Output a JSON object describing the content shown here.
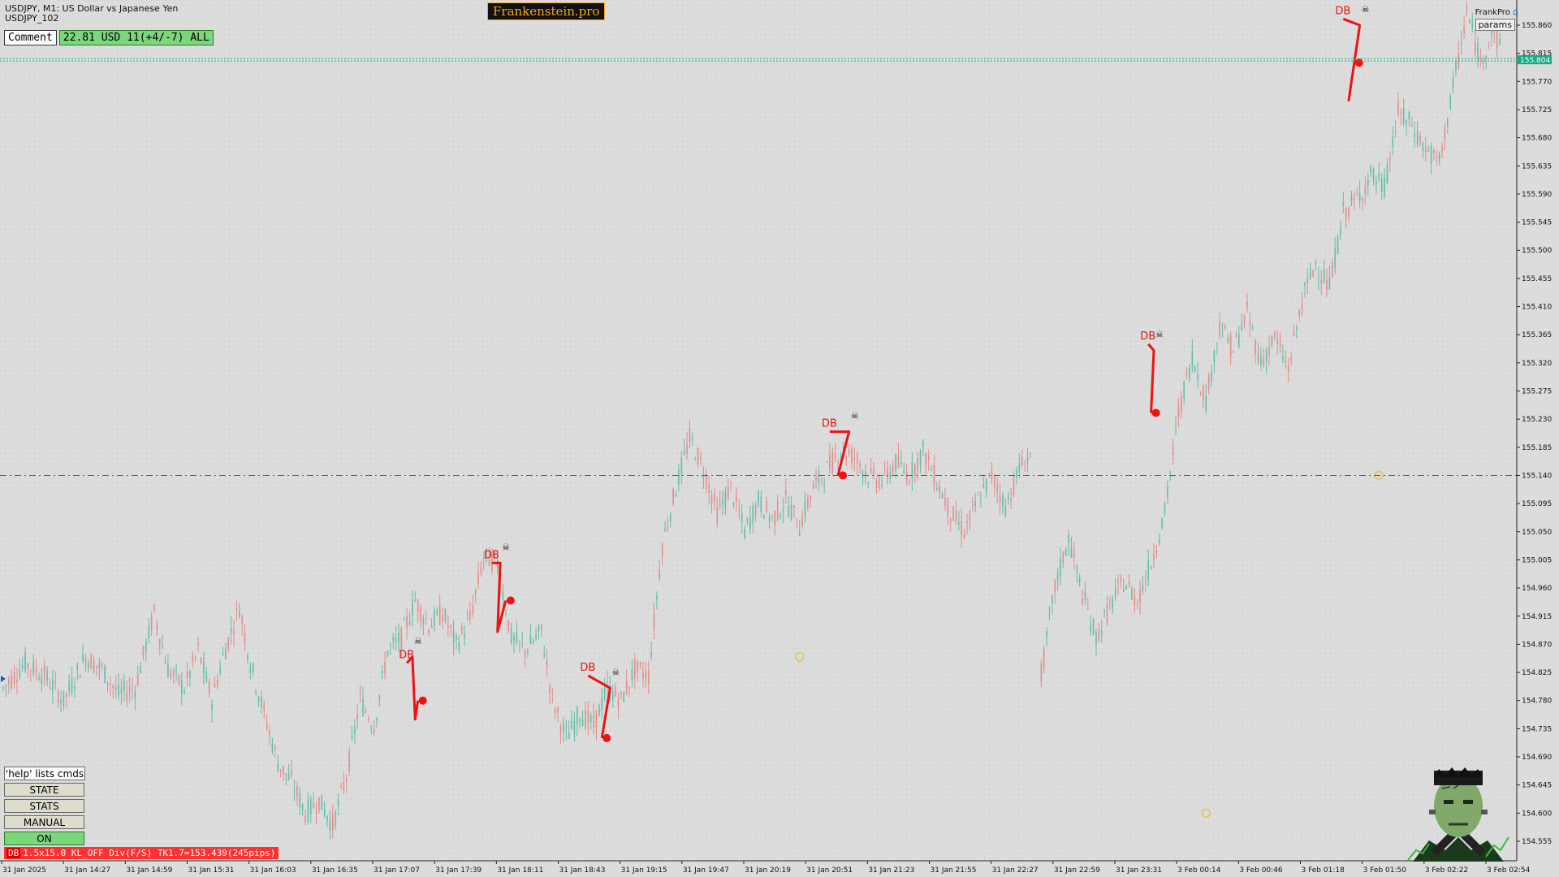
{
  "window": {
    "symbol_title": "USDJPY, M1:  US Dollar vs Japanese Yen",
    "subtitle": "USDJPY_102",
    "brand": "Frankenstein.pro",
    "frankpro_label": "FrankPro",
    "params_label": "params"
  },
  "comment": {
    "label": "Comment",
    "value": "22.81 USD 11(+4/-7) ALL"
  },
  "panel": {
    "help": "'help' lists cmds",
    "state": "STATE",
    "stats": "STATS",
    "manual": "MANUAL",
    "on": "ON"
  },
  "status": {
    "tag": "DB",
    "text": "1.5x15.0 KL_OFF Div(F/S) TK1.7=153.439(245pips)"
  },
  "colors": {
    "background": "#dcdcdc",
    "bull": "#5fbfa6",
    "bear": "#e58a8a",
    "signal": "#ee1111",
    "bid_line": "#1aaa88",
    "level_line": "#dd2222"
  },
  "chart_data": {
    "type": "candlestick",
    "symbol": "USDJPY",
    "timeframe": "M1",
    "y_range": [
      154.525,
      155.895
    ],
    "y_ticks": [
      "155.860",
      "155.815",
      "155.770",
      "155.725",
      "155.680",
      "155.635",
      "155.590",
      "155.545",
      "155.500",
      "155.455",
      "155.410",
      "155.365",
      "155.320",
      "155.275",
      "155.230",
      "155.185",
      "155.140",
      "155.095",
      "155.050",
      "155.005",
      "154.960",
      "154.915",
      "154.870",
      "154.825",
      "154.780",
      "154.735",
      "154.690",
      "154.645",
      "154.600",
      "154.555"
    ],
    "x_ticks": [
      "31 Jan 2025",
      "31 Jan 14:27",
      "31 Jan 14:59",
      "31 Jan 15:31",
      "31 Jan 16:03",
      "31 Jan 16:35",
      "31 Jan 17:07",
      "31 Jan 17:39",
      "31 Jan 18:11",
      "31 Jan 18:43",
      "31 Jan 19:15",
      "31 Jan 19:47",
      "31 Jan 20:19",
      "31 Jan 20:51",
      "31 Jan 21:23",
      "31 Jan 21:55",
      "31 Jan 22:27",
      "31 Jan 22:59",
      "31 Jan 23:31",
      "3 Feb 00:14",
      "3 Feb 00:46",
      "3 Feb 01:18",
      "3 Feb 01:50",
      "3 Feb 02:22",
      "3 Feb 02:54"
    ],
    "current_price": "155.804",
    "level_line": 155.14,
    "path_segments": [
      {
        "from": "31 Jan 2025",
        "to": "31 Jan 23:31",
        "points": [
          [
            0,
            154.8
          ],
          [
            8,
            154.84
          ],
          [
            15,
            154.82
          ],
          [
            22,
            154.78
          ],
          [
            30,
            154.85
          ],
          [
            36,
            154.83
          ],
          [
            42,
            154.79
          ],
          [
            48,
            154.8
          ],
          [
            55,
            154.92
          ],
          [
            60,
            154.83
          ],
          [
            66,
            154.8
          ],
          [
            71,
            154.86
          ],
          [
            76,
            154.78
          ],
          [
            80,
            154.85
          ],
          [
            86,
            154.93
          ],
          [
            90,
            154.84
          ],
          [
            95,
            154.76
          ],
          [
            100,
            154.68
          ],
          [
            105,
            154.65
          ],
          [
            110,
            154.6
          ],
          [
            115,
            154.62
          ],
          [
            120,
            154.58
          ],
          [
            125,
            154.66
          ],
          [
            130,
            154.78
          ],
          [
            135,
            154.74
          ],
          [
            140,
            154.86
          ],
          [
            145,
            154.88
          ],
          [
            150,
            154.94
          ],
          [
            155,
            154.9
          ],
          [
            160,
            154.92
          ],
          [
            165,
            154.87
          ],
          [
            170,
            154.91
          ],
          [
            175,
            155.01
          ],
          [
            180,
            155.0
          ],
          [
            185,
            154.88
          ],
          [
            190,
            154.86
          ],
          [
            196,
            154.89
          ],
          [
            200,
            154.78
          ],
          [
            205,
            154.72
          ],
          [
            210,
            154.76
          ],
          [
            215,
            154.74
          ],
          [
            220,
            154.8
          ],
          [
            225,
            154.78
          ],
          [
            230,
            154.83
          ],
          [
            235,
            154.82
          ],
          [
            240,
            155.03
          ],
          [
            245,
            155.12
          ],
          [
            250,
            155.2
          ],
          [
            255,
            155.15
          ],
          [
            260,
            155.08
          ],
          [
            265,
            155.12
          ],
          [
            270,
            155.05
          ],
          [
            275,
            155.1
          ],
          [
            280,
            155.07
          ],
          [
            285,
            155.1
          ],
          [
            290,
            155.06
          ],
          [
            295,
            155.12
          ],
          [
            300,
            155.15
          ],
          [
            305,
            155.18
          ],
          [
            310,
            155.17
          ],
          [
            315,
            155.14
          ],
          [
            320,
            155.13
          ],
          [
            325,
            155.16
          ],
          [
            330,
            155.14
          ],
          [
            335,
            155.18
          ],
          [
            340,
            155.13
          ],
          [
            345,
            155.08
          ],
          [
            350,
            155.05
          ],
          [
            355,
            155.1
          ],
          [
            360,
            155.14
          ],
          [
            365,
            155.09
          ],
          [
            370,
            155.15
          ],
          [
            375,
            155.18
          ]
        ]
      },
      {
        "from": "3 Feb 00:14",
        "to": "3 Feb 02:54",
        "points": [
          [
            378,
            154.82
          ],
          [
            383,
            154.96
          ],
          [
            388,
            155.04
          ],
          [
            393,
            154.95
          ],
          [
            398,
            154.88
          ],
          [
            403,
            154.93
          ],
          [
            408,
            154.97
          ],
          [
            413,
            154.94
          ],
          [
            418,
            155.0
          ],
          [
            423,
            155.08
          ],
          [
            428,
            155.24
          ],
          [
            433,
            155.33
          ],
          [
            438,
            155.26
          ],
          [
            443,
            155.38
          ],
          [
            448,
            155.34
          ],
          [
            453,
            155.4
          ],
          [
            458,
            155.32
          ],
          [
            463,
            155.36
          ],
          [
            468,
            155.31
          ],
          [
            473,
            155.42
          ],
          [
            478,
            155.48
          ],
          [
            483,
            155.44
          ],
          [
            488,
            155.56
          ],
          [
            493,
            155.58
          ],
          [
            498,
            155.62
          ],
          [
            503,
            155.6
          ],
          [
            508,
            155.72
          ],
          [
            513,
            155.7
          ],
          [
            518,
            155.66
          ],
          [
            523,
            155.64
          ],
          [
            528,
            155.76
          ],
          [
            533,
            155.88
          ],
          [
            538,
            155.8
          ],
          [
            542,
            155.85
          ],
          [
            546,
            155.82
          ]
        ]
      }
    ],
    "signals": [
      {
        "label": "DB",
        "time": "31 Jan 17:39",
        "points": [
          [
            147,
            154.84
          ],
          [
            149,
            154.85
          ],
          [
            150,
            154.75
          ],
          [
            151,
            154.78
          ]
        ]
      },
      {
        "label": "DB",
        "time": "31 Jan 18:11",
        "points": [
          [
            178,
            155.0
          ],
          [
            181,
            155.0
          ],
          [
            180,
            154.89
          ],
          [
            183,
            154.94
          ]
        ]
      },
      {
        "label": "DB",
        "time": "31 Jan 19:15",
        "points": [
          [
            213,
            154.82
          ],
          [
            221,
            154.8
          ],
          [
            218,
            154.72
          ]
        ]
      },
      {
        "label": "DB",
        "time": "31 Jan 21:55",
        "points": [
          [
            301,
            155.21
          ],
          [
            308,
            155.21
          ],
          [
            304,
            155.14
          ]
        ]
      },
      {
        "label": "DB",
        "time": "3 Feb 00:46",
        "points": [
          [
            417,
            155.35
          ],
          [
            419,
            155.34
          ],
          [
            418,
            155.24
          ]
        ]
      },
      {
        "label": "DB",
        "time": "3 Feb 02:54",
        "points": [
          [
            488,
            155.87
          ],
          [
            494,
            155.86
          ],
          [
            490,
            155.74
          ],
          [
            492,
            155.8
          ]
        ]
      }
    ],
    "markers": [
      {
        "time": "31 Jan 22:59",
        "price": 154.85
      },
      {
        "time": "3 Feb 01:18",
        "price": 154.6
      },
      {
        "time": "3 Feb 02:54",
        "price": 155.14
      }
    ]
  }
}
